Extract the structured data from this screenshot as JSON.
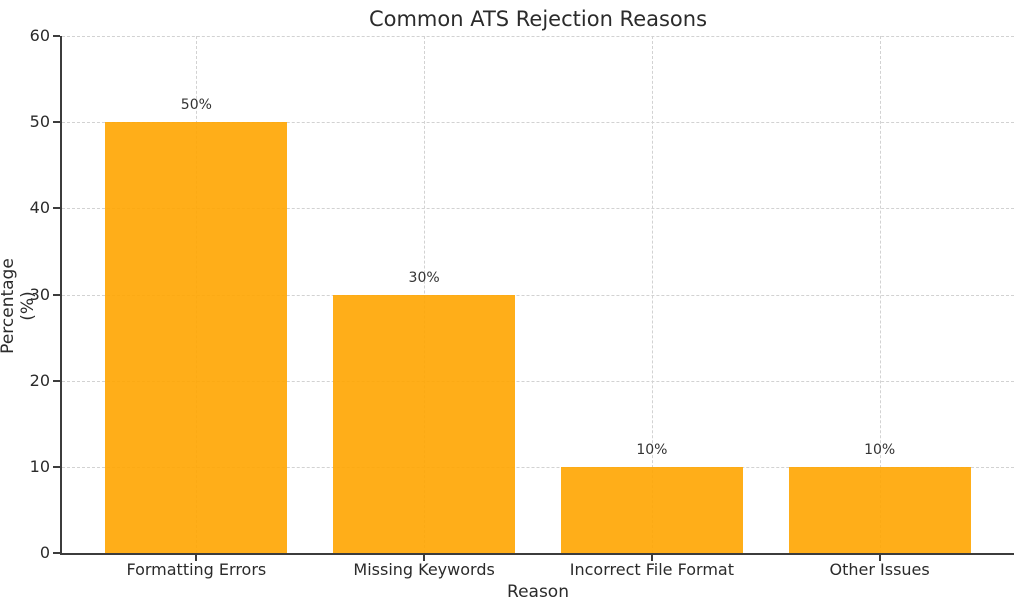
{
  "chart_data": {
    "type": "bar",
    "title": "Common ATS Rejection Reasons",
    "xlabel": "Reason",
    "ylabel": "Percentage (%)",
    "categories": [
      "Formatting Errors",
      "Missing Keywords",
      "Incorrect File Format",
      "Other Issues"
    ],
    "values": [
      50,
      30,
      10,
      10
    ],
    "value_labels": [
      "50%",
      "30%",
      "10%",
      "10%"
    ],
    "ylim": [
      0,
      60
    ],
    "yticks": [
      0,
      10,
      20,
      30,
      40,
      50,
      60
    ],
    "grid": true,
    "legend": "none",
    "bar_color": "#FFA500",
    "bar_alpha": 0.9,
    "grid_color": "#D2D2D2",
    "axis_color": "#3C3C3C",
    "text_color": "#2B2B2B",
    "value_label_color": "#333333"
  }
}
